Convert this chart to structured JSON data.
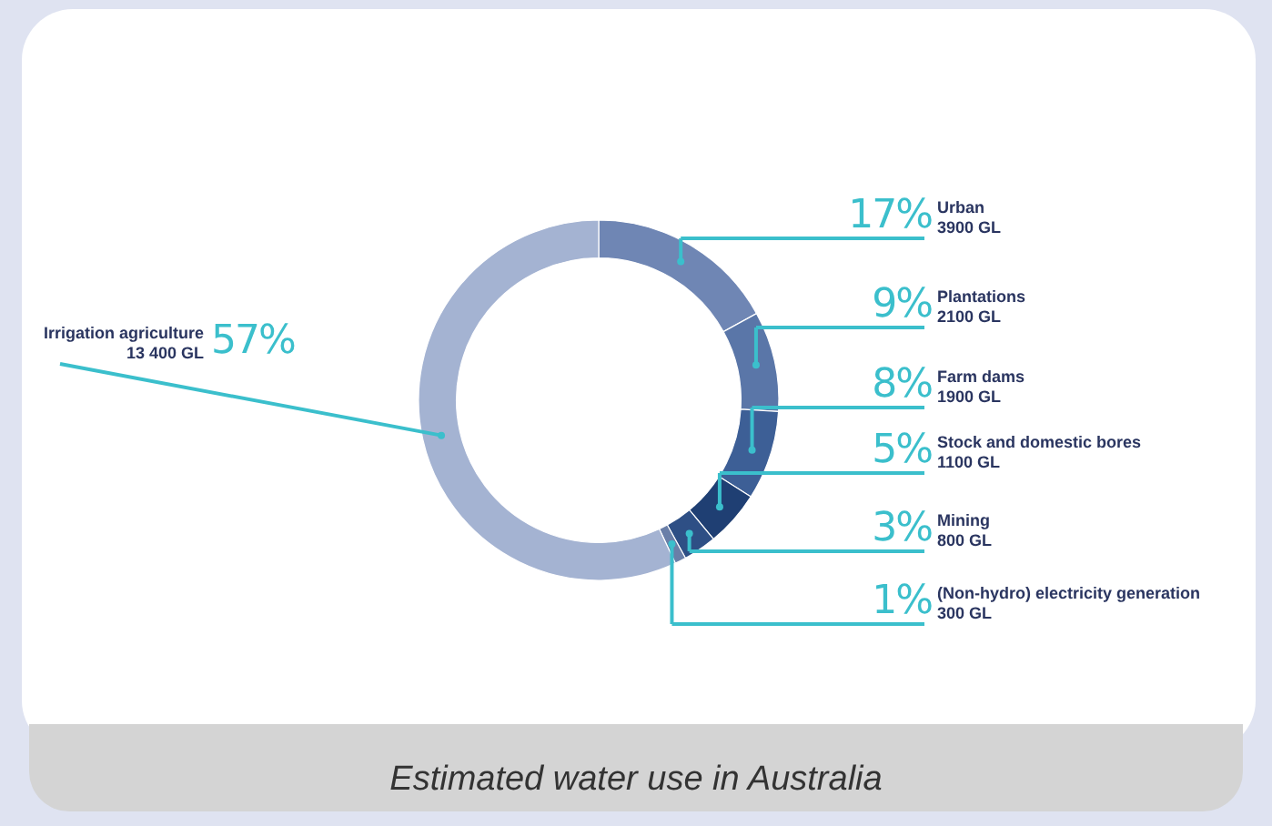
{
  "chart_data": {
    "type": "donut",
    "categories": [
      "Urban",
      "Plantations",
      "Farm dams",
      "Stock and domestic bores",
      "Mining",
      "(Non-hydro) electricity generation",
      "Irrigation agriculture"
    ],
    "values": [
      17,
      9,
      8,
      5,
      3,
      1,
      57
    ],
    "value_labels": [
      "17%",
      "9%",
      "8%",
      "5%",
      "3%",
      "1%",
      "57%"
    ],
    "colors": [
      "#6f86b4",
      "#5a76a8",
      "#3d5f96",
      "#1f3f73",
      "#2e4f85",
      "#6a7fa8",
      "#a4b3d2"
    ],
    "annotations": [
      "3900 GL",
      "2100 GL",
      "1900 GL",
      "1100 GL",
      "800 GL",
      "300 GL",
      "13 400 GL",
      "Estimated water use  in Australia"
    ],
    "legend": false
  }
}
